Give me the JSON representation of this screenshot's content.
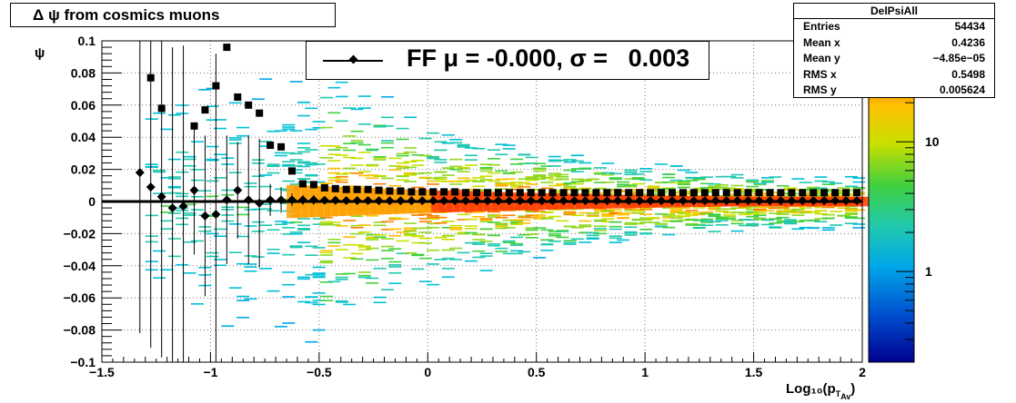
{
  "chart_data": {
    "type": "heatmap",
    "title": "Δ ψ from cosmics muons",
    "xlabel": "Log₁₀(p",
    "xlabel_sub": "T",
    "xlabel_subsub": "Av",
    "xlabel_end": ")",
    "ylabel": "ψ",
    "xlim": [
      -1.5,
      2.0
    ],
    "ylim": [
      -0.1,
      0.1
    ],
    "x_ticks": [
      "−1.5",
      "−1",
      "−0.5",
      "0",
      "0.5",
      "1",
      "1.5",
      "2"
    ],
    "y_ticks": [
      "−0.1",
      "−0.08",
      "−0.06",
      "−0.04",
      "−0.02",
      "0",
      "0.02",
      "0.04",
      "0.06",
      "0.08",
      "0.1"
    ],
    "colorbar": {
      "scale": "log",
      "ticks": [
        "1",
        "10"
      ]
    },
    "grid": true,
    "stats": {
      "name": "DelPsiAll",
      "rows": [
        {
          "label": "Entries",
          "value": "54434"
        },
        {
          "label": "Mean x",
          "value": "0.4236"
        },
        {
          "label": "Mean y",
          "value": "−4.85e−05"
        },
        {
          "label": "RMS x",
          "value": "0.5498"
        },
        {
          "label": "RMS y",
          "value": "0.005624"
        }
      ]
    },
    "legend": {
      "text": "FF μ = -0.000, σ =   0.003"
    },
    "fit_line_y": 0.0,
    "means": {
      "x": [
        -1.325,
        -1.275,
        -1.225,
        -1.175,
        -1.125,
        -1.075,
        -1.025,
        -0.975,
        -0.925,
        -0.875,
        -0.825,
        -0.775,
        -0.725,
        -0.675,
        -0.625,
        -0.575,
        -0.525,
        -0.475,
        -0.425,
        -0.375,
        -0.325,
        -0.275,
        -0.225,
        -0.175,
        -0.125,
        -0.075,
        -0.025,
        0.025,
        0.075,
        0.125,
        0.175,
        0.225,
        0.275,
        0.325,
        0.375,
        0.425,
        0.475,
        0.525,
        0.575,
        0.625,
        0.675,
        0.725,
        0.775,
        0.825,
        0.875,
        0.925,
        0.975,
        1.025,
        1.075,
        1.125,
        1.175,
        1.225,
        1.275,
        1.325,
        1.375,
        1.425,
        1.475,
        1.525,
        1.575,
        1.625,
        1.675,
        1.725,
        1.775,
        1.825,
        1.875,
        1.925,
        1.975
      ],
      "y": [
        0.018,
        0.009,
        0.003,
        -0.004,
        -0.003,
        0.007,
        -0.009,
        -0.008,
        0.001,
        0.007,
        0.001,
        -0.001,
        0.001,
        0.001,
        0.001,
        0.001,
        0.001,
        0.0008,
        0.0008,
        0.0006,
        0.0006,
        0.0006,
        0.0005,
        0.0005,
        0.0005,
        0.0005,
        0.0005,
        0.0005,
        0.0005,
        0.0005,
        0.0005,
        0.0005,
        0.0005,
        0.0005,
        0.0005,
        0.0005,
        0.0005,
        0.0005,
        0.0005,
        0.0005,
        0.0005,
        0.0005,
        0.0005,
        0.0005,
        0.0005,
        0.0005,
        0.0005,
        0.0005,
        0.0005,
        0.0005,
        0.0005,
        0.0005,
        0.0005,
        0.0005,
        0.0005,
        0.0005,
        0.0005,
        0.0005,
        0.0005,
        0.0005,
        0.0005,
        0.0005,
        0.0005,
        0.0005,
        0.0005,
        0.0005,
        0.0005
      ],
      "err": [
        0.1,
        0.1,
        0.1,
        0.1,
        0.1,
        0.04,
        0.05,
        0.1,
        0.04,
        0.03,
        0.04,
        0.04,
        0.01,
        0.008,
        0.004,
        0.003,
        0.003,
        0.002,
        0.002,
        0.0015,
        0.0015,
        0.0012,
        0.001,
        0.001,
        0.001,
        0.001,
        0.001,
        0.001,
        0.001,
        0.001,
        0.001,
        0.001,
        0.001,
        0.001,
        0.001,
        0.001,
        0.001,
        0.001,
        0.001,
        0.001,
        0.001,
        0.001,
        0.001,
        0.001,
        0.001,
        0.001,
        0.001,
        0.001,
        0.001,
        0.001,
        0.001,
        0.001,
        0.001,
        0.001,
        0.001,
        0.001,
        0.001,
        0.001,
        0.001,
        0.001,
        0.001,
        0.001,
        0.001,
        0.001,
        0.001,
        0.001,
        0.001
      ]
    },
    "rms": {
      "x": [
        -1.325,
        -1.275,
        -1.225,
        -1.175,
        -1.125,
        -1.075,
        -1.025,
        -0.975,
        -0.925,
        -0.875,
        -0.825,
        -0.775,
        -0.725,
        -0.675,
        -0.625,
        -0.575,
        -0.525,
        -0.475,
        -0.425,
        -0.375,
        -0.325,
        -0.275,
        -0.225,
        -0.175,
        -0.125,
        -0.075,
        -0.025,
        0.025,
        0.075,
        0.125,
        0.175,
        0.225,
        0.275,
        0.325,
        0.375,
        0.425,
        0.475,
        0.525,
        0.575,
        0.625,
        0.675,
        0.725,
        0.775,
        0.825,
        0.875,
        0.925,
        0.975,
        1.025,
        1.075,
        1.125,
        1.175,
        1.225,
        1.275,
        1.325,
        1.375,
        1.425,
        1.475,
        1.525,
        1.575,
        1.625,
        1.675,
        1.725,
        1.775,
        1.825,
        1.875,
        1.925,
        1.975
      ],
      "y": [
        null,
        0.077,
        0.058,
        null,
        null,
        0.047,
        0.057,
        0.072,
        0.096,
        0.065,
        0.06,
        0.055,
        0.035,
        0.034,
        0.019,
        0.011,
        0.0105,
        0.0085,
        0.008,
        0.0075,
        0.0075,
        0.0075,
        0.007,
        0.0065,
        0.0065,
        0.006,
        0.006,
        0.006,
        0.006,
        0.006,
        0.0055,
        0.0055,
        0.0055,
        0.0055,
        0.0055,
        0.0055,
        0.0055,
        0.0055,
        0.0055,
        0.0055,
        0.0055,
        0.0055,
        0.0055,
        0.0055,
        0.0055,
        0.0055,
        0.0055,
        0.0055,
        0.0055,
        0.0055,
        0.0055,
        0.0055,
        0.0055,
        0.0055,
        0.0055,
        0.0055,
        0.0055,
        0.0055,
        0.0055,
        0.0055,
        0.0055,
        0.0055,
        0.0055,
        0.0055,
        0.0055,
        0.0055,
        0.0055,
        0.0055,
        0.0055,
        0.0055
      ]
    }
  }
}
